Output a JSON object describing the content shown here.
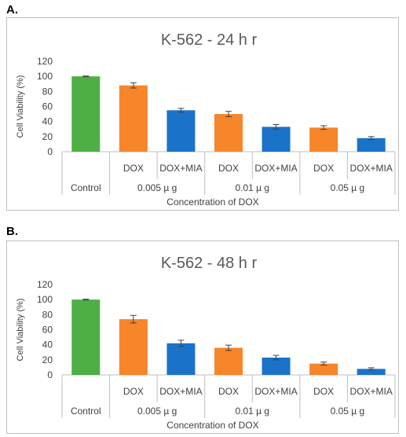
{
  "panels": [
    {
      "label": "A.",
      "chart_data": {
        "type": "bar",
        "title": "K-562 - 24 h r",
        "ylabel": "Cell Viability (%)",
        "xlabel": "Concentration of DOX",
        "ylim": [
          0,
          120
        ],
        "yticks": [
          0,
          20,
          40,
          60,
          80,
          100,
          120
        ],
        "groups": [
          "Control",
          "0.005 µ g",
          "0.01 µ g",
          "0.05 µ g"
        ],
        "categories": [
          "",
          "DOX",
          "DOX+MIA",
          "DOX",
          "DOX+MIA",
          "DOX",
          "DOX+MIA"
        ],
        "values": [
          100,
          88,
          55,
          50,
          33,
          32,
          18
        ],
        "errors": [
          0.5,
          3.5,
          2.5,
          3.5,
          3,
          2.5,
          2
        ],
        "colors": [
          "#4daf44",
          "#f7852a",
          "#1a73c9",
          "#f7852a",
          "#1a73c9",
          "#f7852a",
          "#1a73c9"
        ],
        "grid": false
      }
    },
    {
      "label": "B.",
      "chart_data": {
        "type": "bar",
        "title": "K-562 - 48 h r",
        "ylabel": "Cell Viability (%)",
        "xlabel": "Concentration of DOX",
        "ylim": [
          0,
          120
        ],
        "yticks": [
          0,
          20,
          40,
          60,
          80,
          100,
          120
        ],
        "groups": [
          "Control",
          "0.005 µ g",
          "0.01 µ g",
          "0.05 µ g"
        ],
        "categories": [
          "",
          "DOX",
          "DOX+MIA",
          "DOX",
          "DOX+MIA",
          "DOX",
          "DOX+MIA"
        ],
        "values": [
          100,
          74,
          42,
          36,
          23,
          15,
          8
        ],
        "errors": [
          0.5,
          5,
          4,
          3.5,
          3,
          2,
          1.5
        ],
        "colors": [
          "#4daf44",
          "#f7852a",
          "#1a73c9",
          "#f7852a",
          "#1a73c9",
          "#f7852a",
          "#1a73c9"
        ],
        "grid": false
      }
    }
  ]
}
